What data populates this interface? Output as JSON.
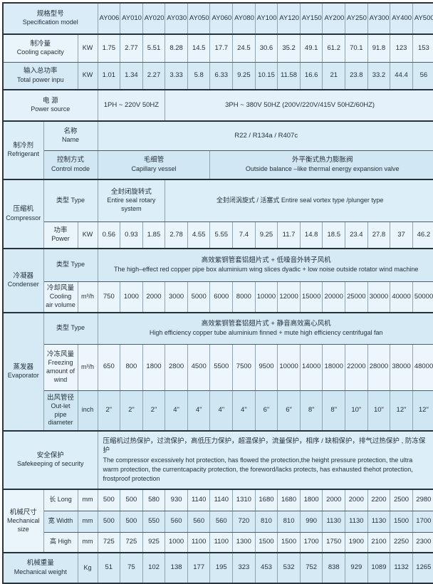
{
  "header": {
    "label_zh": "规格型号",
    "label_en": "Specification model",
    "models": [
      "AY006",
      "AY010",
      "AY020",
      "AY030",
      "AY050",
      "AY060",
      "AY080",
      "AY100",
      "AY120",
      "AY150",
      "AY200",
      "AY250",
      "AY300",
      "AY400",
      "AY500"
    ]
  },
  "cooling_capacity": {
    "zh": "制冷量",
    "en": "Cooling capacity",
    "unit": "KW",
    "values": [
      "1.75",
      "2.77",
      "5.51",
      "8.28",
      "14.5",
      "17.7",
      "24.5",
      "30.6",
      "35.2",
      "49.1",
      "61.2",
      "70.1",
      "91.8",
      "123",
      "153"
    ]
  },
  "total_power": {
    "zh": "输入总功率",
    "en": "Total power inpu",
    "unit": "KW",
    "values": [
      "1.01",
      "1.34",
      "2.27",
      "3.33",
      "5.8",
      "6.33",
      "9.25",
      "10.15",
      "11.58",
      "16.6",
      "21",
      "23.8",
      "33.2",
      "44.4",
      "56"
    ]
  },
  "power_source": {
    "zh": "电 源",
    "en": "Power source",
    "single_phase": "1PH ~ 220V 50HZ",
    "three_phase": "3PH ~ 380V 50HZ (200V/220V/415V 50HZ/60HZ)"
  },
  "refrigerant": {
    "zh": "制冷剂",
    "en": "Refrigerant",
    "name_zh": "名称",
    "name_en": "Name",
    "name_value": "R22 / R134a / R407c",
    "control_zh": "控制方式",
    "control_en": "Control mode",
    "capillary_zh": "毛细管",
    "capillary_en": "Capillary vessel",
    "valve_zh": "外平衡式热力膨胀阀",
    "valve_en": "Outside balance –like thermal energy expansion valve"
  },
  "compressor": {
    "zh": "压缩机",
    "en": "Compressor",
    "type_label": "类型 Type",
    "rotary_zh": "全封闭旋转式",
    "rotary_en": "Entire seal rotary system",
    "vortex": "全封闭涡旋式 / 活塞式 Entire seal vortex type /plunger type",
    "power_zh": "功率",
    "power_en": "Power",
    "power_unit": "KW",
    "power_values": [
      "0.56",
      "0.93",
      "1.85",
      "2.78",
      "4.55",
      "5.55",
      "7.4",
      "9.25",
      "11.7",
      "14.8",
      "18.5",
      "23.4",
      "27.8",
      "37",
      "46.2"
    ]
  },
  "condenser": {
    "zh": "冷凝器",
    "en": "Condenser",
    "type_label": "类型 Type",
    "type_zh": "高效紫铜管套铝翅片式 + 低噪音外转子风机",
    "type_en": "The high–effect red copper pipe box aluminium wing slices dyadic + low noise outside rotator wind machine",
    "air_zh": "冷却风量",
    "air_en": "Cooling air volume",
    "air_unit": "m³/h",
    "air_values": [
      "750",
      "1000",
      "2000",
      "3000",
      "5000",
      "6000",
      "8000",
      "10000",
      "12000",
      "15000",
      "20000",
      "25000",
      "30000",
      "40000",
      "50000"
    ]
  },
  "evaporator": {
    "zh": "蒸发器",
    "en": "Evaporator",
    "type_label": "类型 Type",
    "type_zh": "高效紫铜管套铝翅片式 + 静音高效离心风机",
    "type_en": "High efficiency copper tube aluminium finned + mute high efficiency centrifugal fan",
    "freezing_zh": "冷冻风量",
    "freezing_en": "Freezing amount of wind",
    "freezing_unit": "m³/h",
    "freezing_values": [
      "650",
      "800",
      "1800",
      "2800",
      "4500",
      "5500",
      "7500",
      "9500",
      "10000",
      "14000",
      "18000",
      "22000",
      "28000",
      "38000",
      "48000"
    ],
    "outlet_zh": "出风管径",
    "outlet_en": "Out-let pipe diameter",
    "outlet_unit": "inch",
    "outlet_values": [
      "2\"",
      "2\"",
      "2\"",
      "4\"",
      "4\"",
      "4\"",
      "4\"",
      "6\"",
      "6\"",
      "8\"",
      "8\"",
      "10\"",
      "10\"",
      "12\"",
      "12\""
    ]
  },
  "safety": {
    "zh": "安全保护",
    "en": "Safekeeping of security",
    "text_zh": "压缩机过热保护，过流保护，高低压力保护，超温保护，流量保护，相序 / 缺相保护，排气过热保护 , 防冻保护",
    "text_en": "The compressor excessively hot protection, has flowed the protection,the height pressure protection, the ultra warm protection, the currentcapacity protection, the foreword/lacks protects, has exhausted thehot protection, frostproof protection"
  },
  "mechanical_size": {
    "zh": "机械尺寸",
    "en": "Mechanical size",
    "long_label": "长 Long",
    "long_unit": "mm",
    "long_values": [
      "500",
      "500",
      "580",
      "930",
      "1140",
      "1140",
      "1310",
      "1680",
      "1680",
      "1800",
      "2000",
      "2000",
      "2200",
      "2500",
      "2980"
    ],
    "width_label": "宽 Width",
    "width_unit": "mm",
    "width_values": [
      "500",
      "500",
      "550",
      "560",
      "560",
      "560",
      "720",
      "810",
      "810",
      "990",
      "1130",
      "1130",
      "1130",
      "1500",
      "1700"
    ],
    "high_label": "高 High",
    "high_unit": "mm",
    "high_values": [
      "725",
      "725",
      "925",
      "1000",
      "1100",
      "1100",
      "1300",
      "1500",
      "1500",
      "1700",
      "1750",
      "1900",
      "2100",
      "2250",
      "2300"
    ]
  },
  "weight": {
    "zh": "机械重量",
    "en": "Mechanical weight",
    "unit": "Kg",
    "values": [
      "51",
      "75",
      "102",
      "138",
      "177",
      "195",
      "323",
      "453",
      "532",
      "752",
      "838",
      "929",
      "1089",
      "1132",
      "1265"
    ]
  }
}
